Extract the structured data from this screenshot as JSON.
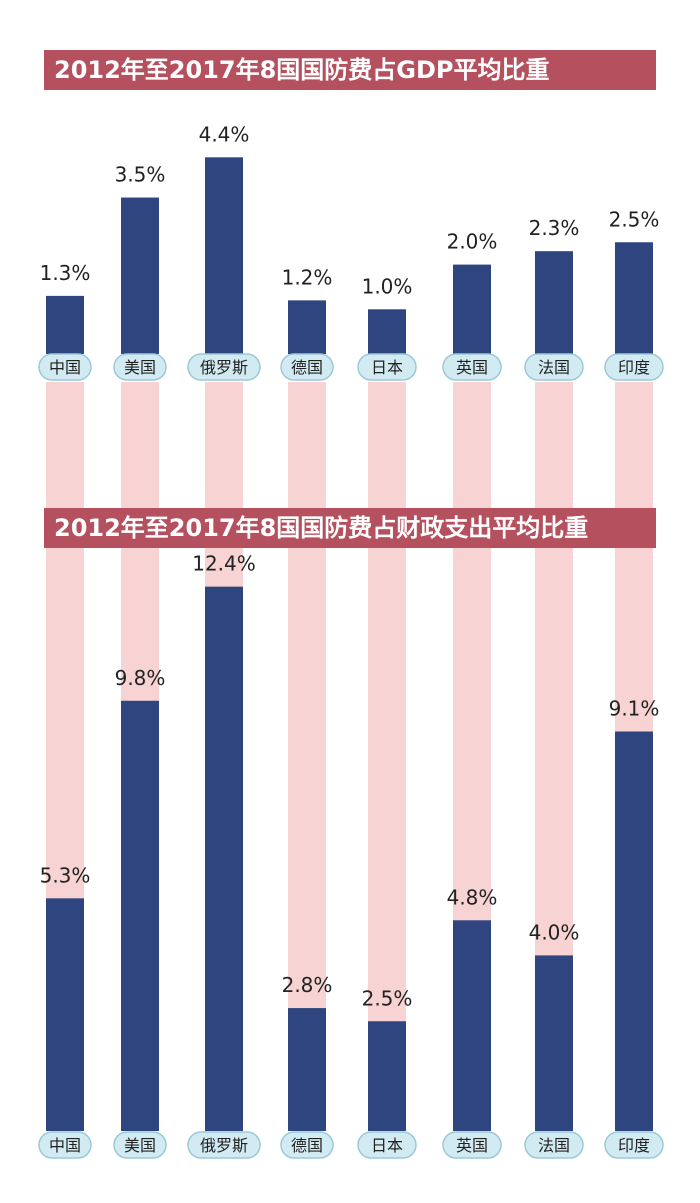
{
  "chart_data": [
    {
      "type": "bar",
      "title": "2012年至2017年8国国防费占GDP平均比重",
      "categories": [
        "中国",
        "美国",
        "俄罗斯",
        "德国",
        "日本",
        "英国",
        "法国",
        "印度"
      ],
      "values": [
        1.3,
        3.5,
        4.4,
        1.2,
        1.0,
        2.0,
        2.3,
        2.5
      ],
      "value_labels": [
        "1.3%",
        "3.5%",
        "4.4%",
        "1.2%",
        "1.0%",
        "2.0%",
        "2.3%",
        "2.5%"
      ],
      "unit": "%"
    },
    {
      "type": "bar",
      "title": "2012年至2017年8国国防费占财政支出平均比重",
      "categories": [
        "中国",
        "美国",
        "俄罗斯",
        "德国",
        "日本",
        "英国",
        "法国",
        "印度"
      ],
      "values": [
        5.3,
        9.8,
        12.4,
        2.8,
        2.5,
        4.8,
        4.0,
        9.1
      ],
      "value_labels": [
        "5.3%",
        "9.8%",
        "12.4%",
        "2.8%",
        "2.5%",
        "4.8%",
        "4.0%",
        "9.1%"
      ],
      "unit": "%"
    }
  ],
  "colors": {
    "bar": "#2e4580",
    "banner": "#b5505f",
    "column_background": "#f7d3d3",
    "pill_fill": "#d2ebf2",
    "pill_stroke": "#9cc9d6",
    "text": "#222222"
  }
}
